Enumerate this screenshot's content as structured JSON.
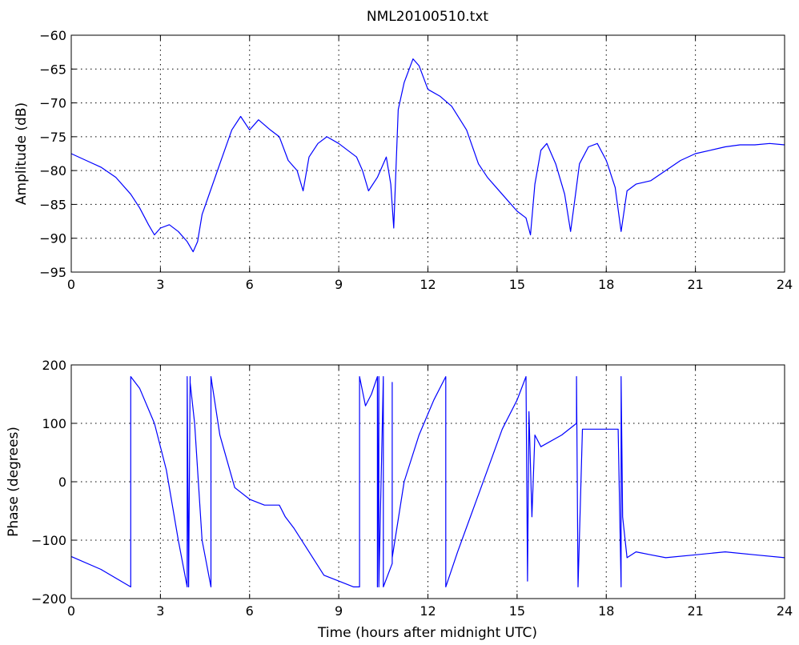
{
  "title": "NML20100510.txt",
  "chart_data": [
    {
      "type": "line",
      "xlabel": "",
      "ylabel": "Amplitude (dB)",
      "xlim": [
        0,
        24
      ],
      "ylim": [
        -95,
        -60
      ],
      "xticks": [
        0,
        3,
        6,
        9,
        12,
        15,
        18,
        21,
        24
      ],
      "yticks": [
        -95,
        -90,
        -85,
        -80,
        -75,
        -70,
        -65,
        -60
      ],
      "grid": true,
      "color": "#0000ff",
      "series": [
        {
          "x": [
            0,
            0.5,
            1.0,
            1.5,
            2.0,
            2.3,
            2.6,
            2.8,
            3.0,
            3.3,
            3.6,
            3.9,
            4.1,
            4.25,
            4.4,
            4.6,
            5.0,
            5.4,
            5.7,
            6.0,
            6.3,
            6.7,
            7.0,
            7.3,
            7.6,
            7.8,
            8.0,
            8.3,
            8.6,
            9.0,
            9.3,
            9.6,
            9.8,
            10.0,
            10.3,
            10.6,
            10.75,
            10.85,
            11.0,
            11.2,
            11.5,
            11.7,
            12.0,
            12.4,
            12.8,
            13.3,
            13.7,
            14.0,
            14.3,
            14.7,
            15.0,
            15.3,
            15.45,
            15.6,
            15.8,
            16.0,
            16.3,
            16.6,
            16.8,
            16.95,
            17.1,
            17.4,
            17.7,
            18.0,
            18.3,
            18.5,
            18.7,
            19.0,
            19.5,
            20.0,
            20.5,
            21.0,
            21.5,
            22.0,
            22.5,
            23.0,
            23.5,
            24.0
          ],
          "y": [
            -77.5,
            -78.5,
            -79.5,
            -81,
            -83.5,
            -85.5,
            -88,
            -89.5,
            -88.5,
            -88,
            -89,
            -90.5,
            -92,
            -90.5,
            -86.5,
            -84,
            -79,
            -74,
            -72,
            -74,
            -72.5,
            -74,
            -75,
            -78.5,
            -80,
            -83,
            -78,
            -76,
            -75,
            -76,
            -77,
            -78,
            -80,
            -83,
            -81,
            -78,
            -82,
            -88.5,
            -71,
            -67,
            -63.5,
            -64.5,
            -68,
            -69,
            -70.5,
            -74,
            -79,
            -81,
            -82.5,
            -84.5,
            -86,
            -87,
            -89.5,
            -82,
            -77,
            -76,
            -79,
            -83.5,
            -89,
            -84,
            -79,
            -76.5,
            -76,
            -78.5,
            -82.5,
            -89,
            -83,
            -82,
            -81.5,
            -80,
            -78.5,
            -77.5,
            -77,
            -76.5,
            -76.2,
            -76.2,
            -76,
            -76.2
          ]
        }
      ]
    },
    {
      "type": "line",
      "xlabel": "Time (hours after midnight UTC)",
      "ylabel": "Phase (degrees)",
      "xlim": [
        0,
        24
      ],
      "ylim": [
        -200,
        200
      ],
      "xticks": [
        0,
        3,
        6,
        9,
        12,
        15,
        18,
        21,
        24
      ],
      "yticks": [
        -200,
        -100,
        0,
        100,
        200
      ],
      "grid": true,
      "color": "#0000ff",
      "series": [
        {
          "x": [
            0,
            1.0,
            2.0,
            2.0,
            2.3,
            2.8,
            3.2,
            3.6,
            3.9,
            3.9,
            3.95,
            4.0,
            4.0,
            4.15,
            4.4,
            4.7,
            4.7,
            5.0,
            5.5,
            6.0,
            6.5,
            7.0,
            7.2,
            7.5,
            8.0,
            8.5,
            9.0,
            9.5,
            9.7,
            9.7,
            9.9,
            10.1,
            10.3,
            10.3,
            10.35,
            10.35,
            10.5,
            10.5,
            10.8,
            10.8,
            10.8,
            11.2,
            11.7,
            12.2,
            12.6,
            12.6,
            13.0,
            13.5,
            14.0,
            14.5,
            15.0,
            15.3,
            15.35,
            15.4,
            15.5,
            15.6,
            15.8,
            16.5,
            17.0,
            17.0,
            17.05,
            17.2,
            17.6,
            18.0,
            18.4,
            18.5,
            18.5,
            18.55,
            18.7,
            19.0,
            19.5,
            20.0,
            21.0,
            22.0,
            23.0,
            24.0
          ],
          "y": [
            -128,
            -150,
            -180,
            180,
            160,
            100,
            20,
            -100,
            -180,
            180,
            -180,
            180,
            170,
            100,
            -100,
            -180,
            180,
            80,
            -10,
            -30,
            -40,
            -40,
            -60,
            -80,
            -120,
            -160,
            -170,
            -180,
            -180,
            180,
            130,
            150,
            180,
            -180,
            180,
            -180,
            180,
            -180,
            -140,
            170,
            -130,
            0,
            80,
            140,
            180,
            -180,
            -120,
            -50,
            20,
            90,
            140,
            180,
            -170,
            120,
            -60,
            80,
            60,
            80,
            100,
            180,
            -180,
            90,
            90,
            90,
            90,
            -180,
            180,
            -60,
            -130,
            -120,
            -125,
            -130,
            -125,
            -120,
            -125,
            -130
          ]
        }
      ]
    }
  ]
}
